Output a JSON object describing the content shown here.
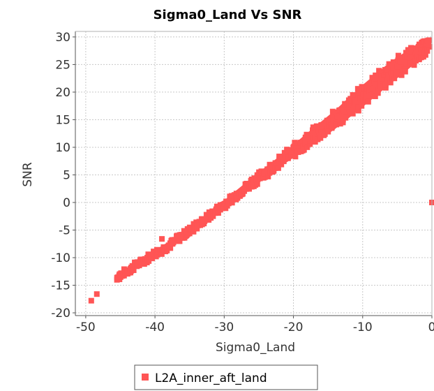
{
  "chart_data": {
    "type": "scatter",
    "title": "Sigma0_Land Vs SNR",
    "xlabel": "Sigma0_Land",
    "ylabel": "SNR",
    "xlim": [
      -51.5,
      0
    ],
    "ylim": [
      -20.5,
      31
    ],
    "xticks": [
      -50,
      -40,
      -30,
      -20,
      -10,
      0
    ],
    "yticks": [
      -20,
      -15,
      -10,
      -5,
      0,
      5,
      10,
      15,
      20,
      25,
      30
    ],
    "xtick_labels": [
      "-50",
      "-40",
      "-30",
      "-20",
      "-10",
      "0"
    ],
    "ytick_labels": [
      "-20",
      "-15",
      "-10",
      "-5",
      "0",
      "5",
      "10",
      "15",
      "20",
      "25",
      "30"
    ],
    "grid": true,
    "legend_position": "bottom-center",
    "series": [
      {
        "name": "L2A_inner_aft_land",
        "color": "#ff5555",
        "marker": "square",
        "band": [
          {
            "x": -45.5,
            "y": -13.6,
            "w": 0.6
          },
          {
            "x": -42.0,
            "y": -10.8,
            "w": 0.7
          },
          {
            "x": -38.0,
            "y": -7.8,
            "w": 0.7
          },
          {
            "x": -34.0,
            "y": -4.2,
            "w": 0.7
          },
          {
            "x": -30.0,
            "y": -0.4,
            "w": 0.8
          },
          {
            "x": -26.0,
            "y": 3.6,
            "w": 0.9
          },
          {
            "x": -22.0,
            "y": 7.4,
            "w": 1.0
          },
          {
            "x": -18.0,
            "y": 11.2,
            "w": 1.4
          },
          {
            "x": -14.0,
            "y": 15.0,
            "w": 1.7
          },
          {
            "x": -10.0,
            "y": 19.3,
            "w": 2.0
          },
          {
            "x": -6.0,
            "y": 23.5,
            "w": 2.0
          },
          {
            "x": -2.0,
            "y": 27.2,
            "w": 1.6
          },
          {
            "x": -0.3,
            "y": 28.6,
            "w": 1.0
          }
        ],
        "points": [
          {
            "x": -49.2,
            "y": -17.8
          },
          {
            "x": -48.4,
            "y": -16.6
          },
          {
            "x": -39.0,
            "y": -6.6
          },
          {
            "x": -36.8,
            "y": -6.0
          },
          {
            "x": -31.0,
            "y": -0.9
          },
          {
            "x": 0.0,
            "y": 0.0
          }
        ]
      }
    ]
  }
}
